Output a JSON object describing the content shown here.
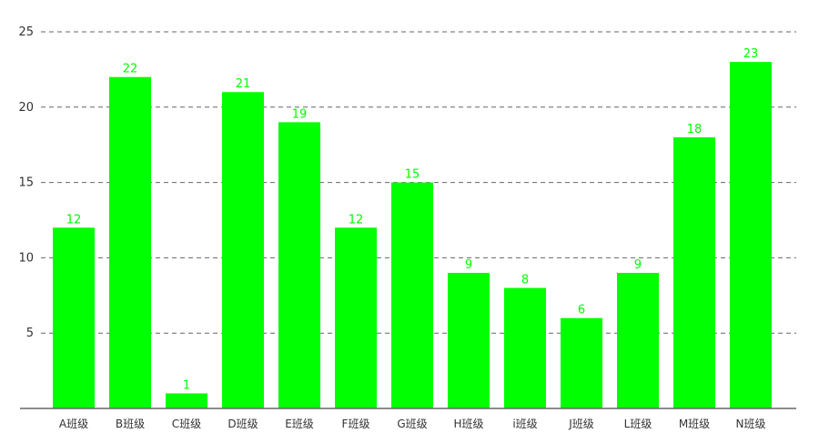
{
  "chart_data": {
    "type": "bar",
    "categories": [
      "A班级",
      "B班级",
      "C班级",
      "D班级",
      "E班级",
      "F班级",
      "G班级",
      "H班级",
      "i班级",
      "J班级",
      "L班级",
      "M班级",
      "N班级"
    ],
    "values": [
      12,
      22,
      1,
      21,
      19,
      12,
      15,
      9,
      8,
      6,
      9,
      18,
      23
    ],
    "yticks": [
      "5",
      "10",
      "15",
      "20",
      "25"
    ],
    "ylim": [
      0,
      25
    ],
    "grid": true,
    "bar_color": "#00ff00",
    "label_color": "#00ff00"
  }
}
